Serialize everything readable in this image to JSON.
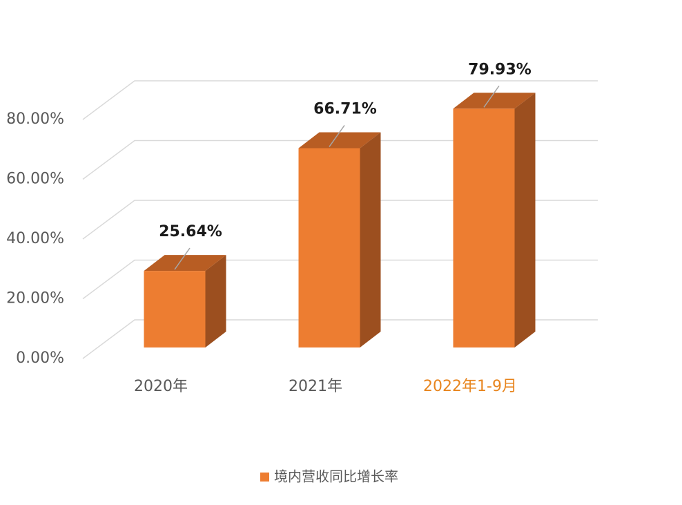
{
  "chart_data": {
    "type": "bar3d",
    "categories": [
      "2020年",
      "2021年",
      "2022年1-9月"
    ],
    "category_colors": [
      "#595959",
      "#595959",
      "#e8851e"
    ],
    "series": [
      {
        "name": "境内营收同比增长率",
        "color": "#ed7d31",
        "values": [
          25.64,
          66.71,
          79.93
        ],
        "value_labels": [
          "25.64%",
          "66.71%",
          "79.93%"
        ]
      }
    ],
    "ylim": [
      0,
      80
    ],
    "yticks": [
      {
        "value": 0,
        "label": "0.00%"
      },
      {
        "value": 20,
        "label": "20.00%"
      },
      {
        "value": 40,
        "label": "40.00%"
      },
      {
        "value": 60,
        "label": "60.00%"
      },
      {
        "value": 80,
        "label": "80.00%"
      }
    ],
    "grid": true,
    "legend": "bottom"
  }
}
